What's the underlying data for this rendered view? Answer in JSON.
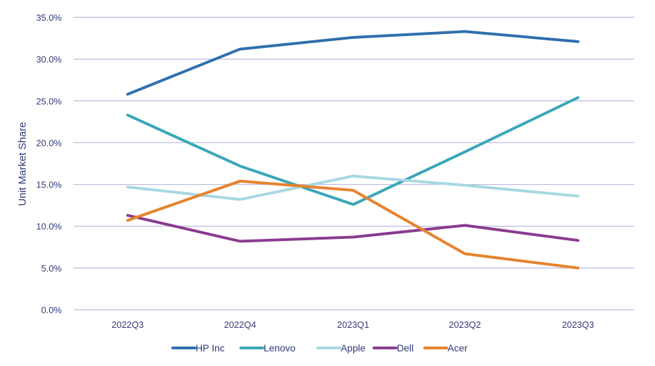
{
  "chart_data": {
    "type": "line",
    "title": "",
    "xlabel": "",
    "ylabel": "Unit Market Share",
    "categories": [
      "2022Q3",
      "2022Q4",
      "2023Q1",
      "2023Q2",
      "2023Q3"
    ],
    "yticks": [
      "0.0%",
      "5.0%",
      "10.0%",
      "15.0%",
      "20.0%",
      "25.0%",
      "30.0%",
      "35.0%"
    ],
    "ylim": [
      0,
      35
    ],
    "grid": true,
    "legend_position": "bottom",
    "series": [
      {
        "name": "HP Inc",
        "color": "#2f6fad",
        "values": [
          25.8,
          31.2,
          32.6,
          33.3,
          32.1
        ]
      },
      {
        "name": "Lenovo",
        "color": "#3aa6b9",
        "values": [
          23.3,
          17.2,
          12.6,
          18.9,
          25.4
        ]
      },
      {
        "name": "Apple",
        "color": "#a8d8e2",
        "values": [
          14.7,
          13.2,
          16.0,
          14.9,
          13.6
        ]
      },
      {
        "name": "Dell",
        "color": "#8a3b8f",
        "values": [
          11.3,
          8.2,
          8.7,
          10.1,
          8.3
        ]
      },
      {
        "name": "Acer",
        "color": "#e6832e",
        "values": [
          10.7,
          15.4,
          14.3,
          6.7,
          5.0
        ]
      }
    ]
  },
  "colors": {
    "axis_text": "#2e3a78",
    "gridline": "#b9b9e0"
  }
}
